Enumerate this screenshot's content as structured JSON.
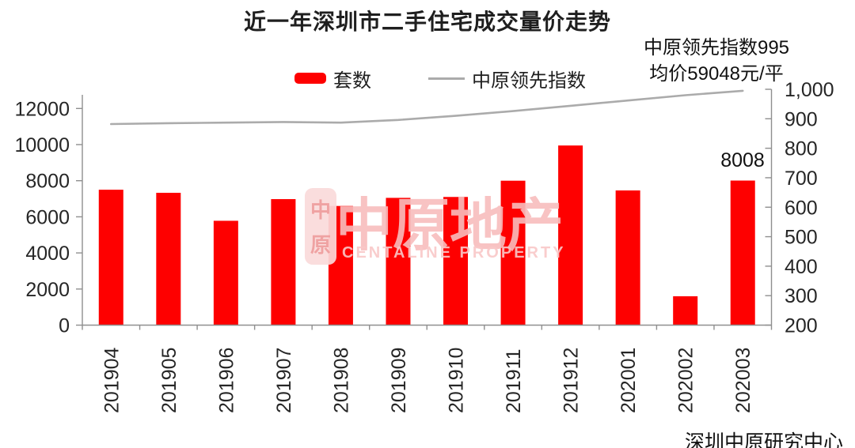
{
  "chart_data": {
    "type": "combo-bar-line",
    "title": "近一年深圳市二手住宅成交量价走势",
    "categories": [
      "201904",
      "201905",
      "201906",
      "201907",
      "201908",
      "201909",
      "201910",
      "201911",
      "201912",
      "202001",
      "202002",
      "202003"
    ],
    "series": [
      {
        "name": "套数",
        "type": "bar",
        "axis": "left",
        "color": "#fe0000",
        "values": [
          7500,
          7330,
          5780,
          6980,
          6600,
          7050,
          7100,
          8000,
          9950,
          7460,
          1600,
          8008
        ]
      },
      {
        "name": "中原领先指数",
        "type": "line",
        "axis": "right",
        "color": "#ababab",
        "values": [
          882,
          885,
          887,
          889,
          887,
          896,
          910,
          926,
          944,
          962,
          980,
          995
        ]
      }
    ],
    "left_axis": {
      "min": 0,
      "max": 13000,
      "ticks": [
        0,
        2000,
        4000,
        6000,
        8000,
        10000,
        12000
      ],
      "tick_labels": [
        "0",
        "2000",
        "4000",
        "6000",
        "8000",
        "10000",
        "12000"
      ]
    },
    "right_axis": {
      "min": 200,
      "max": 1000,
      "ticks": [
        200,
        300,
        400,
        500,
        600,
        700,
        800,
        900,
        1000
      ],
      "tick_labels": [
        "200",
        "300",
        "400",
        "500",
        "600",
        "700",
        "800",
        "900",
        "1,000"
      ]
    },
    "annotations": [
      "中原领先指数995",
      "均价59048元/平"
    ],
    "bar_label": {
      "category": "202003",
      "text": "8008"
    },
    "source": "深圳中原研究中心",
    "legend_position": "top",
    "grid": false
  },
  "watermark": {
    "seal_top": "中",
    "seal_bottom": "原",
    "text": "中原地产",
    "subtext": "CENTALINE PROPERTY"
  },
  "colors": {
    "bar_red": "#fe0000",
    "line_gray": "#ababab",
    "axis_gray": "#8f8f8f",
    "label_dark": "#262626"
  }
}
